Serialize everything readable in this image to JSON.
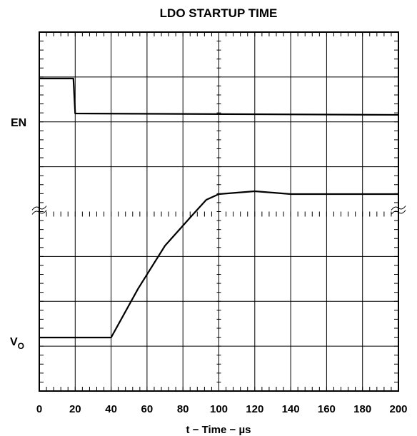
{
  "chart_data": {
    "type": "line",
    "title": "LDO STARTUP TIME",
    "xlabel": "t − Time − µs",
    "ylabel": "",
    "x_ticks": [
      "0",
      "20",
      "40",
      "60",
      "80",
      "100",
      "120",
      "140",
      "160",
      "180",
      "200"
    ],
    "xlim": [
      0,
      200
    ],
    "grid": true,
    "grid_divisions": {
      "x": 10,
      "y": 8
    },
    "split_axis": true,
    "series": [
      {
        "name": "EN",
        "color": "#000000",
        "x": [
          0,
          19,
          20,
          200
        ],
        "y": [
          1.0,
          1.0,
          0.0,
          -0.04
        ]
      },
      {
        "name": "VO",
        "color": "#000000",
        "x": [
          0,
          40,
          55,
          70,
          85,
          93,
          100,
          120,
          140,
          200
        ],
        "y": [
          0.0,
          0.0,
          0.34,
          0.64,
          0.85,
          0.96,
          1.0,
          1.02,
          1.0,
          1.0
        ]
      }
    ],
    "trace_labels": {
      "en": "EN",
      "vo_main": "V",
      "vo_sub": "O"
    }
  }
}
